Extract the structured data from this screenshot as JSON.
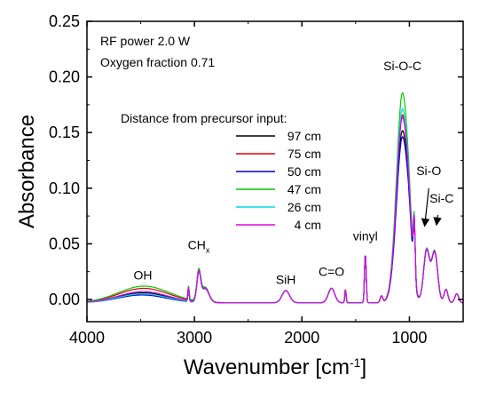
{
  "chart_data": {
    "type": "line",
    "xlabel_main": "Wavenumber [cm",
    "xlabel_sup": "-1",
    "xlabel_end": "]",
    "ylabel": "Absorbance",
    "xlim": [
      4000,
      500
    ],
    "ylim": [
      -0.02,
      0.25
    ],
    "x_ticks": [
      4000,
      3000,
      2000,
      1000
    ],
    "x_tick_labels": [
      "4000",
      "3000",
      "2000",
      "1000"
    ],
    "y_ticks": [
      0.0,
      0.05,
      0.1,
      0.15,
      0.2,
      0.25
    ],
    "y_tick_labels": [
      "0.00",
      "0.05",
      "0.10",
      "0.15",
      "0.20",
      "0.25"
    ],
    "notes": [
      "RF power 2.0 W",
      "Oxygen fraction 0.71"
    ],
    "legend_title": "Distance from precursor input:",
    "legend_position": "upper-left-center",
    "series": [
      {
        "name": "97 cm",
        "color": "#000000",
        "scale": 0.975,
        "bump": 0.0
      },
      {
        "name": "75 cm",
        "color": "#e00000",
        "scale": 1.065,
        "bump": 0.004
      },
      {
        "name": "50 cm",
        "color": "#0000c8",
        "scale": 0.94,
        "bump": -0.002
      },
      {
        "name": "47 cm",
        "color": "#00cc00",
        "scale": 1.19,
        "bump": 0.006
      },
      {
        "name": "26 cm",
        "color": "#00d8e8",
        "scale": 1.1,
        "bump": -0.001
      },
      {
        "name": "4 cm",
        "color": "#e000e0",
        "scale": 1.05,
        "bump": 0.001
      }
    ],
    "peaks": [
      {
        "center": 3480,
        "width": 230,
        "height": 0.009
      },
      {
        "center": 2960,
        "width": 18,
        "height": 0.024
      },
      {
        "center": 2900,
        "width": 35,
        "height": 0.012
      },
      {
        "center": 3055,
        "width": 6,
        "height": 0.012
      },
      {
        "center": 2150,
        "width": 35,
        "height": 0.011
      },
      {
        "center": 1725,
        "width": 30,
        "height": 0.013
      },
      {
        "center": 1595,
        "width": 6,
        "height": 0.012
      },
      {
        "center": 1410,
        "width": 8,
        "height": 0.043
      },
      {
        "center": 1260,
        "width": 12,
        "height": 0.006
      },
      {
        "center": 1065,
        "width": 55,
        "height": 0.158
      },
      {
        "center": 955,
        "width": 9,
        "height": 0.052
      },
      {
        "center": 1000,
        "width": 25,
        "height": 0.02
      },
      {
        "center": 840,
        "width": 28,
        "height": 0.047
      },
      {
        "center": 765,
        "width": 28,
        "height": 0.045
      },
      {
        "center": 660,
        "width": 18,
        "height": 0.012
      },
      {
        "center": 560,
        "width": 18,
        "height": 0.008
      }
    ],
    "baseline": -0.003,
    "annotations": [
      {
        "label": "OH",
        "sub": "",
        "x": 3480,
        "y": 0.018
      },
      {
        "label": "CH",
        "sub": "x",
        "x": 2960,
        "y": 0.045
      },
      {
        "label": "SiH",
        "sub": "",
        "x": 2150,
        "y": 0.014
      },
      {
        "label": "C=O",
        "sub": "",
        "x": 1725,
        "y": 0.021
      },
      {
        "label": "vinyl",
        "sub": "",
        "x": 1410,
        "y": 0.053
      },
      {
        "label": "Si-O-C",
        "sub": "",
        "x": 1065,
        "y": 0.206
      },
      {
        "label": "Si-O",
        "sub": "",
        "x": 820,
        "y": 0.112
      },
      {
        "label": "Si-C",
        "sub": "",
        "x": 700,
        "y": 0.087
      }
    ],
    "arrows": [
      {
        "from": [
          820,
          0.1
        ],
        "to": [
          858,
          0.066
        ]
      },
      {
        "from": [
          735,
          0.076
        ],
        "to": [
          748,
          0.067
        ]
      }
    ]
  }
}
